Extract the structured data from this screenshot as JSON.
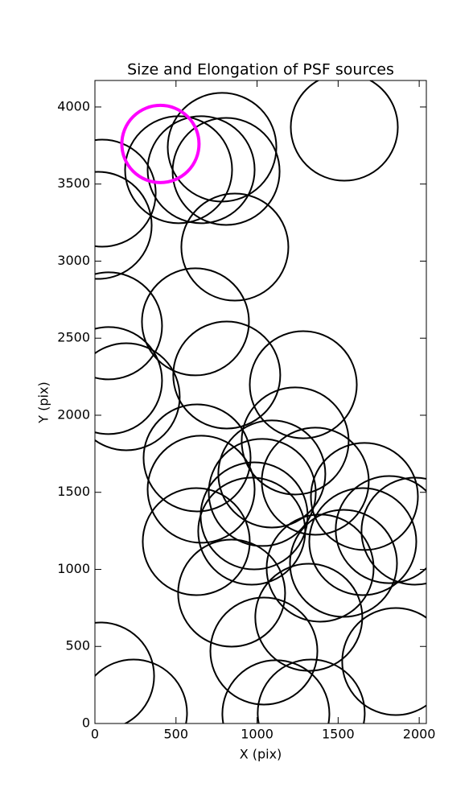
{
  "chart_data": {
    "type": "scatter",
    "title": "Size and Elongation of PSF sources",
    "xlabel": "X (pix)",
    "ylabel": "Y (pix)",
    "xlim": [
      0,
      2044
    ],
    "ylim": [
      0,
      4172
    ],
    "xticks": [
      0,
      500,
      1000,
      1500,
      2000
    ],
    "yticks": [
      0,
      500,
      1000,
      1500,
      2000,
      2500,
      3000,
      3500,
      4000
    ],
    "series": [
      {
        "color": "#000000",
        "x": [
          1538,
          784,
          516,
          655,
          809,
          45,
          20,
          863,
          84,
          620,
          813,
          84,
          1285,
          193,
          1235,
          630,
          1091,
          655,
          1032,
          1359,
          1662,
          982,
          1815,
          625,
          1652,
          1974,
          967,
          1533,
          843,
          1389,
          1319,
          1042,
          1855,
          35,
          238,
          1116,
          1334
        ],
        "y": [
          3869,
          3739,
          3593,
          3593,
          3582,
          3441,
          3232,
          3091,
          2580,
          2606,
          2261,
          2225,
          2198,
          2120,
          1833,
          1723,
          1619,
          1520,
          1499,
          1572,
          1473,
          1347,
          1258,
          1180,
          1180,
          1248,
          1248,
          1039,
          846,
          1008,
          689,
          470,
          402,
          308,
          68,
          63,
          68
        ],
        "sizes": [
          330,
          335,
          330,
          330,
          330,
          330,
          330,
          330,
          330,
          330,
          330,
          330,
          330,
          330,
          330,
          330,
          330,
          330,
          330,
          330,
          330,
          330,
          330,
          330,
          330,
          330,
          330,
          330,
          330,
          330,
          330,
          330,
          330,
          330,
          330,
          330,
          330
        ]
      },
      {
        "color": "#ff00ff",
        "x": [
          404
        ],
        "y": [
          3760
        ],
        "sizes": [
          238
        ]
      }
    ]
  }
}
